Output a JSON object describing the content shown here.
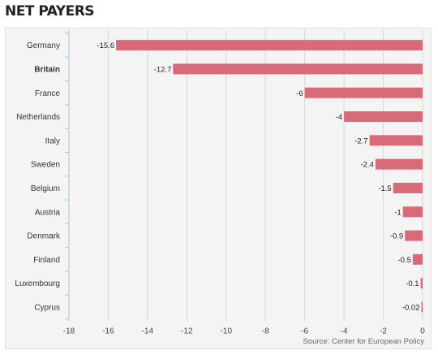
{
  "chart_data": {
    "type": "bar",
    "orientation": "horizontal",
    "title": "NET PAYERS",
    "categories": [
      "Germany",
      "Britain",
      "France",
      "Netherlands",
      "Italy",
      "Sweden",
      "Belgium",
      "Austria",
      "Denmark",
      "Finland",
      "Luxembourg",
      "Cyprus"
    ],
    "values": [
      -15.6,
      -12.7,
      -6,
      -4,
      -2.7,
      -2.4,
      -1.5,
      -1,
      -0.9,
      -0.5,
      -0.1,
      -0.02
    ],
    "value_labels": [
      "-15.6",
      "-12.7",
      "-6",
      "-4",
      "-2.7",
      "-2.4",
      "-1.5",
      "-1",
      "-0.9",
      "-0.5",
      "-0.1",
      "-0.02"
    ],
    "highlighted_category": "Britain",
    "xlim": [
      -18,
      0
    ],
    "xticks": [
      -18,
      -16,
      -14,
      -12,
      -10,
      -8,
      -6,
      -4,
      -2,
      0
    ],
    "xtick_labels": [
      "-18",
      "-16",
      "-14",
      "-12",
      "-10",
      "-8",
      "-6",
      "-4",
      "-2",
      "0"
    ],
    "grid": "vertical",
    "xlabel": "",
    "ylabel": "",
    "source": "Source: Center for European Policy",
    "colors": {
      "bar": "#d96b78",
      "grid": "#d8d8d8",
      "axis": "#a9c4dc",
      "background": "#f4f4f4"
    }
  }
}
